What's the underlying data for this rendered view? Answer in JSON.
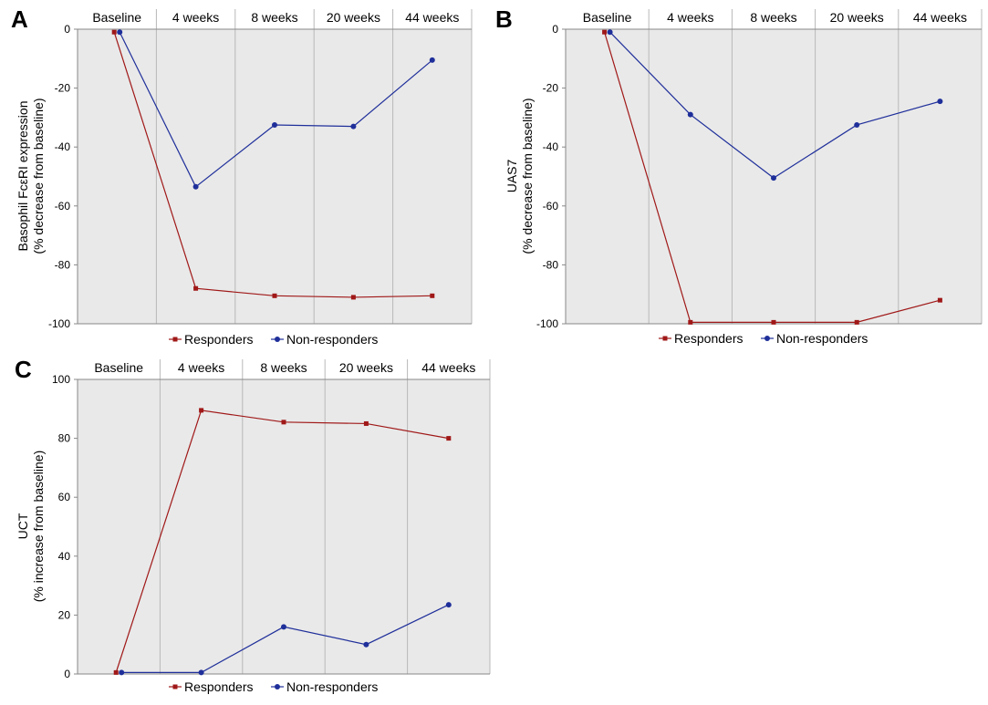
{
  "colors": {
    "responders": "#a01818",
    "non_responders": "#1f2f9a",
    "plot_bg": "#e9e9e9",
    "grid": "#b8b8b8"
  },
  "legend": {
    "responders": "Responders",
    "non_responders": "Non-responders"
  },
  "chart_data": [
    {
      "panel": "A",
      "type": "line",
      "categories": [
        "Baseline",
        "4 weeks",
        "8 weeks",
        "20 weeks",
        "44 weeks"
      ],
      "ylabel_line1": "Basophil FcεRI expression",
      "ylabel_line2": "(% decrease from baseline)",
      "ylim": [
        -100,
        0
      ],
      "yticks": [
        0,
        -20,
        -40,
        -60,
        -80,
        -100
      ],
      "grid": "vertical-category-separators",
      "legend_position": "bottom",
      "series": [
        {
          "name": "Responders",
          "x": [
            1,
            2,
            3,
            4,
            5
          ],
          "values": [
            -1,
            -88,
            -90.5,
            -91,
            -90.5
          ],
          "marker": "square"
        },
        {
          "name": "Non-responders",
          "x": [
            1,
            2,
            3,
            4,
            5
          ],
          "values": [
            -1,
            -53.5,
            -32.5,
            -33,
            -10.5
          ],
          "marker": "circle"
        }
      ]
    },
    {
      "panel": "B",
      "type": "line",
      "categories": [
        "Baseline",
        "4 weeks",
        "8 weeks",
        "20 weeks",
        "44 weeks"
      ],
      "ylabel_line1": "UAS7",
      "ylabel_line2": "(% decrease from baseline)",
      "ylim": [
        -100,
        0
      ],
      "yticks": [
        0,
        -20,
        -40,
        -60,
        -80,
        -100
      ],
      "grid": "vertical-category-separators",
      "legend_position": "bottom",
      "series": [
        {
          "name": "Responders",
          "x": [
            1,
            2,
            3,
            4,
            5
          ],
          "values": [
            -1,
            -99.5,
            -99.5,
            -99.5,
            -92
          ],
          "marker": "square"
        },
        {
          "name": "Non-responders",
          "x": [
            1,
            2,
            3,
            4,
            5
          ],
          "values": [
            -1,
            -29,
            -50.5,
            -32.5,
            -24.5
          ],
          "marker": "circle"
        }
      ]
    },
    {
      "panel": "C",
      "type": "line",
      "categories": [
        "Baseline",
        "4 weeks",
        "8 weeks",
        "20 weeks",
        "44 weeks"
      ],
      "ylabel_line1": "UCT",
      "ylabel_line2": "(% increase from baseline)",
      "ylim": [
        0,
        100
      ],
      "yticks": [
        100,
        80,
        60,
        40,
        20,
        0
      ],
      "grid": "vertical-category-separators",
      "legend_position": "bottom",
      "series": [
        {
          "name": "Responders",
          "x": [
            1,
            2,
            3,
            4,
            5
          ],
          "values": [
            0.5,
            89.5,
            85.5,
            85,
            80
          ],
          "marker": "square"
        },
        {
          "name": "Non-responders",
          "x": [
            1,
            2,
            3,
            4,
            5
          ],
          "values": [
            0.5,
            0.5,
            16,
            10,
            23.5
          ],
          "marker": "circle"
        }
      ]
    }
  ]
}
